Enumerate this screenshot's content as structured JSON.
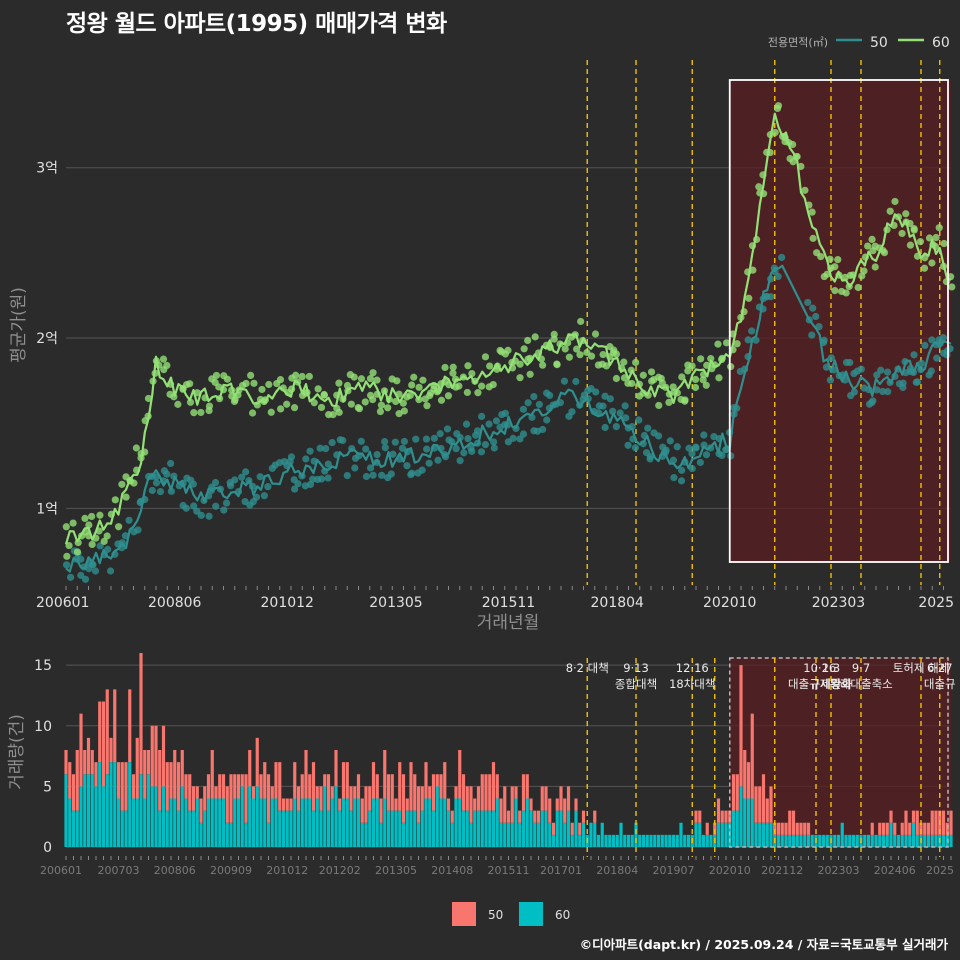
{
  "title": "정왕 월드 아파트(1995) 매매가격 변화",
  "footer": "©디아파트(dapt.kr) / 2025.09.24 / 자료=국토교통부 실거래가",
  "colors": {
    "background": "#2b2b2b",
    "grid": "#555555",
    "area50": "#2f8f8f",
    "area60": "#93e076",
    "bar50": "#f8766d",
    "bar60": "#00bfc4",
    "policy_line": "#f2c200",
    "highlight_fill": "#5a1f22",
    "text": "#e0e0e0",
    "axis_title": "#8f8f8f"
  },
  "chart_data": [
    {
      "id": "price",
      "type": "line",
      "ylabel": "평균가(원)",
      "xlabel": "거래년월",
      "x_ticks": [
        "200601",
        "200806",
        "201012",
        "201305",
        "201511",
        "201804",
        "202010",
        "202303",
        "2025"
      ],
      "y_ticks": [
        {
          "value": 1,
          "label": "1억"
        },
        {
          "value": 2,
          "label": "2억"
        },
        {
          "value": 3,
          "label": "3억"
        }
      ],
      "x_range": [
        "2006-01",
        "2025-09"
      ],
      "y_range_eok": [
        0.55,
        3.65
      ],
      "legend": {
        "title": "전용면적(㎡)",
        "items": [
          "50",
          "60"
        ],
        "position": "top-right"
      },
      "highlight_range": [
        "2020-10",
        "2025-09"
      ],
      "policy_dates": [
        "2017-08",
        "2018-09",
        "2019-12",
        "2021-10",
        "2023-01",
        "2023-09",
        "2025-01",
        "2025-06"
      ],
      "series": [
        {
          "name": "50",
          "anchors": [
            [
              "2006-01",
              0.65
            ],
            [
              "2006-06",
              0.68
            ],
            [
              "2007-01",
              0.72
            ],
            [
              "2007-05",
              0.8
            ],
            [
              "2007-09",
              1.0
            ],
            [
              "2007-12",
              1.2
            ],
            [
              "2008-06",
              1.15
            ],
            [
              "2009-01",
              1.05
            ],
            [
              "2009-09",
              1.1
            ],
            [
              "2010-06",
              1.15
            ],
            [
              "2010-12",
              1.2
            ],
            [
              "2011-06",
              1.25
            ],
            [
              "2012-03",
              1.3
            ],
            [
              "2013-01",
              1.28
            ],
            [
              "2013-08",
              1.3
            ],
            [
              "2014-06",
              1.35
            ],
            [
              "2015-06",
              1.45
            ],
            [
              "2016-06",
              1.55
            ],
            [
              "2017-03",
              1.65
            ],
            [
              "2017-10",
              1.6
            ],
            [
              "2018-06",
              1.5
            ],
            [
              "2019-01",
              1.35
            ],
            [
              "2019-09",
              1.25
            ],
            [
              "2020-03",
              1.35
            ],
            [
              "2020-10",
              1.4
            ],
            [
              "2021-03",
              1.9
            ],
            [
              "2021-08",
              2.3
            ],
            [
              "2021-12",
              2.45
            ],
            [
              "2022-06",
              2.2
            ],
            [
              "2022-12",
              1.85
            ],
            [
              "2023-06",
              1.75
            ],
            [
              "2023-12",
              1.7
            ],
            [
              "2024-06",
              1.8
            ],
            [
              "2025-01",
              1.85
            ],
            [
              "2025-06",
              1.95
            ],
            [
              "2025-09",
              1.95
            ]
          ]
        },
        {
          "name": "60",
          "anchors": [
            [
              "2006-01",
              0.82
            ],
            [
              "2006-06",
              0.85
            ],
            [
              "2007-01",
              0.9
            ],
            [
              "2007-05",
              1.1
            ],
            [
              "2007-09",
              1.3
            ],
            [
              "2008-01",
              1.85
            ],
            [
              "2008-06",
              1.7
            ],
            [
              "2009-01",
              1.65
            ],
            [
              "2009-09",
              1.7
            ],
            [
              "2010-06",
              1.65
            ],
            [
              "2011-01",
              1.7
            ],
            [
              "2012-01",
              1.65
            ],
            [
              "2012-09",
              1.7
            ],
            [
              "2013-06",
              1.65
            ],
            [
              "2014-06",
              1.75
            ],
            [
              "2015-06",
              1.8
            ],
            [
              "2016-06",
              1.9
            ],
            [
              "2017-06",
              2.0
            ],
            [
              "2018-01",
              1.9
            ],
            [
              "2018-09",
              1.75
            ],
            [
              "2019-06",
              1.65
            ],
            [
              "2020-03",
              1.8
            ],
            [
              "2020-10",
              1.9
            ],
            [
              "2021-03",
              2.3
            ],
            [
              "2021-06",
              2.8
            ],
            [
              "2021-10",
              3.3
            ],
            [
              "2022-03",
              3.1
            ],
            [
              "2022-06",
              2.8
            ],
            [
              "2022-12",
              2.4
            ],
            [
              "2023-06",
              2.35
            ],
            [
              "2024-01",
              2.5
            ],
            [
              "2024-06",
              2.75
            ],
            [
              "2025-01",
              2.5
            ],
            [
              "2025-06",
              2.55
            ],
            [
              "2025-09",
              2.3
            ]
          ]
        }
      ]
    },
    {
      "id": "volume",
      "type": "bar",
      "stacked": true,
      "ylabel": "거래량(건)",
      "x_ticks": [
        "200601",
        "200703",
        "200806",
        "200909",
        "201012",
        "201202",
        "201305",
        "201408",
        "201511",
        "201701",
        "201804",
        "201907",
        "202010",
        "202112",
        "202303",
        "202406",
        "2025"
      ],
      "y_ticks": [
        0,
        5,
        10,
        15
      ],
      "y_range": [
        0,
        16
      ],
      "legend": {
        "items": [
          "50",
          "60"
        ],
        "position": "bottom"
      },
      "highlight_range": [
        "2020-10",
        "2025-09"
      ],
      "policy_dates": [
        "2017-08",
        "2018-09",
        "2019-12",
        "2020-06",
        "2021-10",
        "2022-09",
        "2023-01",
        "2023-09",
        "2025-01",
        "2025-06"
      ],
      "annotations": [
        {
          "date": "2017-08",
          "label": "8·2 대책"
        },
        {
          "date": "2018-09",
          "label": "9·13\n종합대책"
        },
        {
          "date": "2019-12",
          "label": "12·16\n18차대책"
        },
        {
          "date": "2022-10",
          "label": "10·26\n대출규제강화"
        },
        {
          "date": "2023-01",
          "label": "1·3\n규제완화"
        },
        {
          "date": "2023-09",
          "label": "9·7\n특례대출축소"
        },
        {
          "date": "2025-01",
          "label": "토허제 해제"
        },
        {
          "date": "2025-06",
          "label": "6·27\n대출규"
        }
      ],
      "series": [
        {
          "name": "50",
          "anchors": [
            [
              "2006-01",
              3
            ],
            [
              "2007-03",
              4
            ],
            [
              "2008-06",
              2
            ],
            [
              "2010-12",
              2
            ],
            [
              "2013-05",
              2
            ],
            [
              "2015-11",
              2
            ],
            [
              "2017-01",
              1
            ],
            [
              "2018-04",
              0
            ],
            [
              "2019-07",
              0
            ],
            [
              "2020-10",
              1
            ],
            [
              "2021-03",
              6
            ],
            [
              "2021-12",
              1
            ],
            [
              "2023-03",
              0
            ],
            [
              "2024-06",
              1
            ],
            [
              "2025-09",
              1
            ]
          ]
        },
        {
          "name": "60",
          "anchors": [
            [
              "2006-01",
              4
            ],
            [
              "2007-03",
              5
            ],
            [
              "2008-06",
              3
            ],
            [
              "2010-12",
              3
            ],
            [
              "2013-05",
              3
            ],
            [
              "2015-11",
              3
            ],
            [
              "2017-01",
              2
            ],
            [
              "2018-04",
              1
            ],
            [
              "2019-07",
              1
            ],
            [
              "2020-10",
              2
            ],
            [
              "2021-03",
              3
            ],
            [
              "2021-12",
              1
            ],
            [
              "2023-03",
              1
            ],
            [
              "2024-06",
              1
            ],
            [
              "2025-09",
              1
            ]
          ]
        }
      ]
    }
  ]
}
